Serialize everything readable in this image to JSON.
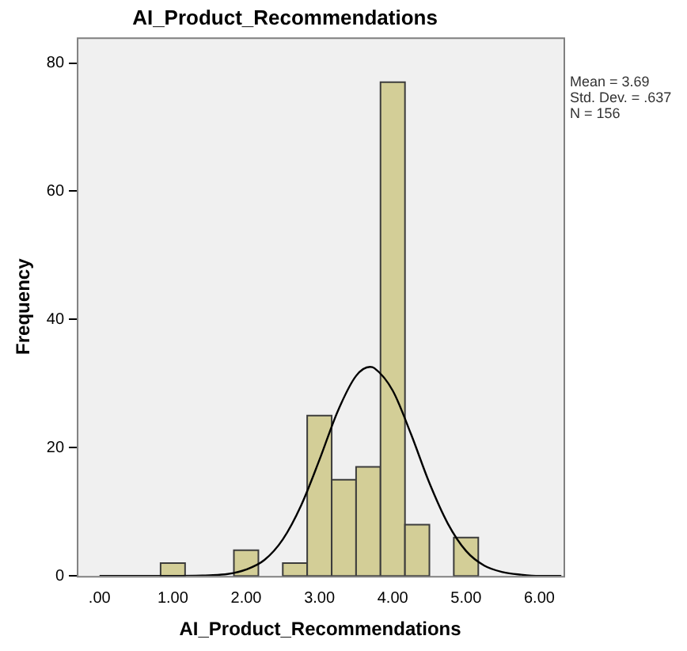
{
  "chart_data": {
    "type": "histogram",
    "title": "AI_Product_Recommendations",
    "xlabel": "AI_Product_Recommendations",
    "ylabel": "Frequency",
    "bins": [
      0.833,
      1.167,
      1.5,
      1.833,
      2.167,
      2.5,
      2.833,
      3.167,
      3.5,
      3.833,
      4.167,
      4.5,
      4.833,
      5.167
    ],
    "values": [
      2,
      0,
      0,
      4,
      0,
      2,
      25,
      15,
      17,
      77,
      8,
      0,
      6
    ],
    "color": "#d3ce97",
    "series": [
      {
        "type": "line",
        "color": "#000000",
        "x": [
          0,
          1,
          1.5,
          1.75,
          2,
          2.25,
          2.5,
          2.75,
          3,
          3.25,
          3.5,
          3.69,
          3.75,
          4,
          4.25,
          4.5,
          4.75,
          5,
          5.25,
          5.5,
          5.75,
          6,
          6.3
        ],
        "values": [
          0,
          0,
          0.1,
          0.3,
          1,
          2.5,
          5.7,
          11,
          18.1,
          25.7,
          31.2,
          32.6,
          32.4,
          28.9,
          22.1,
          14.5,
          8.2,
          3.9,
          1.6,
          0.6,
          0.2,
          0,
          0
        ]
      }
    ],
    "marker": "none",
    "xlim": [
      -0.31,
      6.33
    ],
    "xticks": [
      {
        "value": 0,
        "label": ".00"
      },
      {
        "value": 1,
        "label": "1.00"
      },
      {
        "value": 2,
        "label": "2.00"
      },
      {
        "value": 3,
        "label": "3.00"
      },
      {
        "value": 4,
        "label": "4.00"
      },
      {
        "value": 5,
        "label": "5.00"
      },
      {
        "value": 6,
        "label": "6.00"
      }
    ],
    "ylim": [
      0,
      84
    ],
    "yticks": [
      0,
      20,
      40,
      60,
      80
    ],
    "annotations": [
      "Mean = 3.69",
      "Std. Dev. = .637",
      "N = 156"
    ]
  }
}
